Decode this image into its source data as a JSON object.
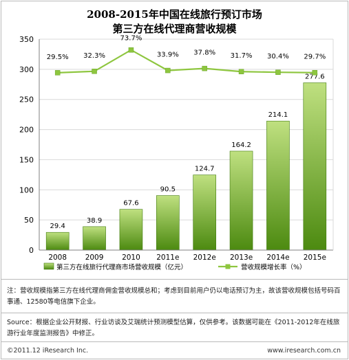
{
  "header": {
    "title_line1": "2008-2015年中国在线旅行预订市场",
    "title_line2": "第三方在线代理商营收规模"
  },
  "chart_data": {
    "type": "bar",
    "categories": [
      "2008",
      "2009",
      "2010",
      "2011e",
      "2012e",
      "2013e",
      "2014e",
      "2015e"
    ],
    "series": [
      {
        "name": "第三方在线旅行代理商市场营收规模（亿元）",
        "type": "bar",
        "values": [
          29.4,
          38.9,
          67.6,
          90.5,
          124.7,
          164.2,
          214.1,
          277.6
        ]
      },
      {
        "name": "营收规模增长率（%）",
        "type": "line",
        "values": [
          29.5,
          32.3,
          73.7,
          33.9,
          37.8,
          31.7,
          30.4,
          29.7
        ],
        "labels": [
          "29.5%",
          "32.3%",
          "73.7%",
          "33.9%",
          "37.8%",
          "31.7%",
          "30.4%",
          "29.7%"
        ]
      }
    ],
    "y_ticks": [
      "0",
      "50",
      "100",
      "150",
      "200",
      "250",
      "300",
      "350"
    ],
    "ylim": [
      0,
      350
    ],
    "grid": true,
    "legend_position": "bottom",
    "colors": {
      "bar_top": "#bfe080",
      "bar_bottom": "#4c8a10",
      "line": "#8ec63f",
      "grid": "#d9d9d9",
      "axis": "#7f7f7f"
    }
  },
  "notes": {
    "note": "注：营收规模指第三方在线代理商佣金营收规模总和；考虑到目前用户仍以电话预订为主，故该营收规模包括号码百事通、12580等电信旗下企业。",
    "source": "Source：根据企业公开财报、行业访谈及艾瑞统计预测模型估算，仅供参考。该数据可能在《2011-2012年在线旅游行业年度监测报告》中修正。"
  },
  "footer": {
    "copyright": "©2011.12 iResearch Inc.",
    "website": "www.iresearch.com.cn"
  }
}
